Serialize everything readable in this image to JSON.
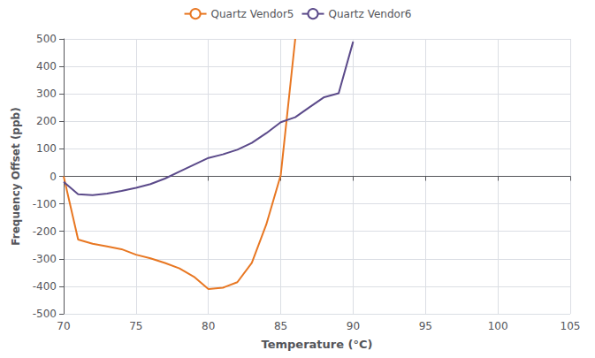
{
  "chart_data": {
    "type": "line",
    "xlabel": "Temperature (°C)",
    "ylabel": "Frequency Offset (ppb)",
    "series": [
      {
        "name": "Quartz Vendor5",
        "color": "#E87722",
        "x": [
          70,
          71,
          72,
          73,
          74,
          75,
          76,
          77,
          78,
          79,
          80,
          81,
          82,
          83,
          84,
          85,
          86
        ],
        "values": [
          0,
          -230,
          -245,
          -255,
          -265,
          -285,
          -298,
          -315,
          -335,
          -365,
          -410,
          -405,
          -385,
          -315,
          -175,
          5,
          500
        ]
      },
      {
        "name": "Quartz Vendor6",
        "color": "#5B4A8A",
        "x": [
          70,
          71,
          72,
          73,
          74,
          75,
          76,
          77,
          78,
          79,
          80,
          81,
          82,
          83,
          84,
          85,
          86,
          87,
          88,
          89,
          90
        ],
        "values": [
          -20,
          -65,
          -68,
          -63,
          -53,
          -42,
          -28,
          -8,
          17,
          42,
          67,
          80,
          97,
          122,
          157,
          197,
          215,
          252,
          288,
          302,
          490
        ]
      }
    ],
    "xlim": [
      70,
      105
    ],
    "ylim": [
      -500,
      500
    ],
    "xticks": [
      70,
      75,
      80,
      85,
      90,
      95,
      100,
      105
    ],
    "yticks": [
      -500,
      -400,
      -300,
      -200,
      -100,
      0,
      100,
      200,
      300,
      400,
      500
    ],
    "grid": true,
    "legend": "top"
  }
}
